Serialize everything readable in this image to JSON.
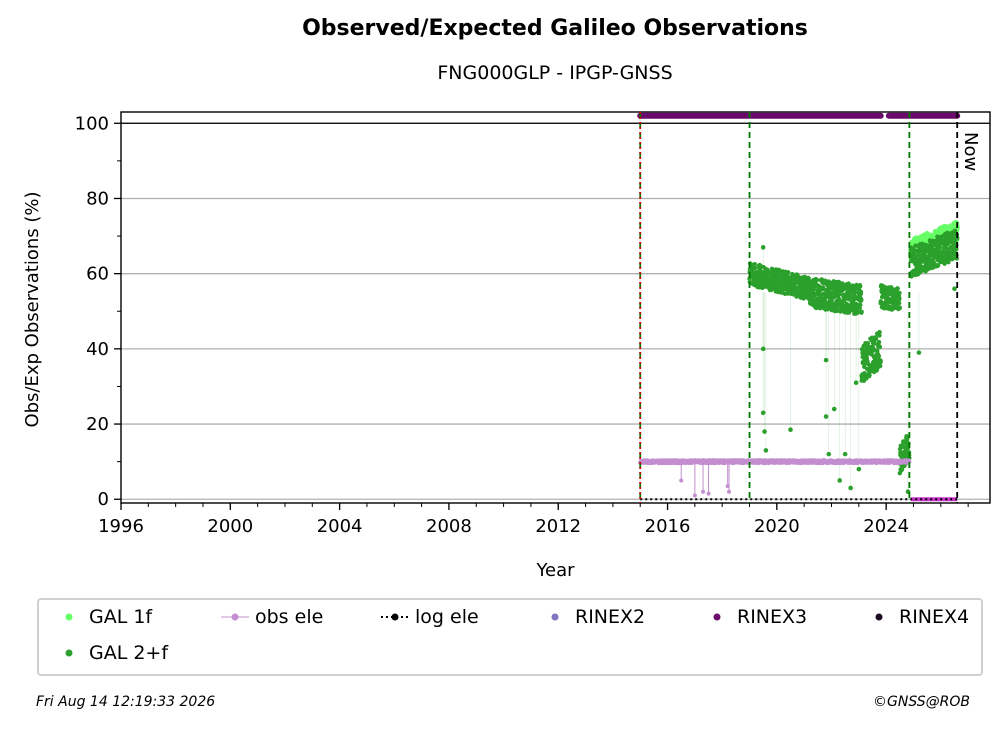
{
  "title": "Observed/Expected Galileo Observations",
  "subtitle": "FNG000GLP - IPGP-GNSS",
  "footer": {
    "timestamp": "Fri Aug 14 12:19:33 2026",
    "credit": "©GNSS@ROB"
  },
  "now_label": "Now",
  "colors": {
    "gal1f": "#66ff66",
    "gal2f": "#2ca02c",
    "obs_ele": "#c38fd0",
    "log_ele": "#000000",
    "rinex2": "#8075c0",
    "rinex3": "#6a0a6a",
    "rinex4": "#1a0a22",
    "event_green": "#007700",
    "event_red": "#cc0000",
    "grid": "#b0b0b0"
  },
  "legend": [
    {
      "label": "GAL 1f",
      "kind": "dot",
      "color": "#66ff66"
    },
    {
      "label": "obs ele",
      "kind": "line-dot",
      "color": "#c38fd0"
    },
    {
      "label": "log ele",
      "kind": "dotted-dot",
      "color": "#000000"
    },
    {
      "label": "RINEX2",
      "kind": "dot",
      "color": "#8075c0"
    },
    {
      "label": "RINEX3",
      "kind": "dot",
      "color": "#6a0a6a"
    },
    {
      "label": "RINEX4",
      "kind": "dot",
      "color": "#1a0a22"
    },
    {
      "label": "GAL 2+f",
      "kind": "dot",
      "color": "#2ca02c"
    }
  ],
  "chart_data": {
    "type": "scatter",
    "xlabel": "Year",
    "ylabel": "Obs/Exp Observations (%)",
    "xlim": [
      1996,
      2027.8
    ],
    "ylim": [
      -1,
      103
    ],
    "x_ticks": [
      "1996",
      "2000",
      "2004",
      "2008",
      "2012",
      "2016",
      "2020",
      "2024"
    ],
    "y_ticks": [
      "0",
      "20",
      "40",
      "60",
      "80",
      "100"
    ],
    "grid": "horizontal",
    "legend_position": "bottom",
    "now_x": 2026.6,
    "event_lines": [
      {
        "x": 2015.0,
        "style": "dashed",
        "color": "green"
      },
      {
        "x": 2015.0,
        "style": "dotted",
        "color": "red"
      },
      {
        "x": 2019.0,
        "style": "dashed",
        "color": "green"
      },
      {
        "x": 2024.85,
        "style": "dashed",
        "color": "green"
      }
    ],
    "series": [
      {
        "name": "GAL 1f",
        "segments": [
          {
            "x_range": [
              2024.9,
              2026.6
            ],
            "y_start": 66,
            "y_end": 71,
            "spread": 3
          }
        ]
      },
      {
        "name": "GAL 2+f",
        "segments": [
          {
            "x_range": [
              2019.0,
              2021.2
            ],
            "y_start": 60,
            "y_end": 56,
            "spread": 3
          },
          {
            "x_range": [
              2021.2,
              2023.1
            ],
            "y_start": 55,
            "y_end": 53,
            "spread": 4
          },
          {
            "x_range": [
              2023.1,
              2023.8
            ],
            "y_start": 36,
            "y_end": 40,
            "spread": 5
          },
          {
            "x_range": [
              2023.8,
              2024.5
            ],
            "y_start": 54,
            "y_end": 53,
            "spread": 3
          },
          {
            "x_range": [
              2024.5,
              2024.85
            ],
            "y_start": 10,
            "y_end": 14,
            "spread": 4
          },
          {
            "x_range": [
              2024.9,
              2026.6
            ],
            "y_start": 63,
            "y_end": 68,
            "spread": 4
          }
        ],
        "outliers": [
          [
            2019.5,
            67
          ],
          [
            2019.5,
            40
          ],
          [
            2019.5,
            23
          ],
          [
            2019.6,
            13
          ],
          [
            2019.55,
            18
          ],
          [
            2020.5,
            18.5
          ],
          [
            2021.8,
            37
          ],
          [
            2021.8,
            22
          ],
          [
            2021.9,
            12
          ],
          [
            2022.1,
            24
          ],
          [
            2022.3,
            5
          ],
          [
            2022.5,
            12
          ],
          [
            2022.7,
            3
          ],
          [
            2022.9,
            31
          ],
          [
            2023.0,
            8
          ],
          [
            2024.8,
            2
          ],
          [
            2025.2,
            39
          ],
          [
            2026.5,
            56
          ]
        ]
      },
      {
        "name": "obs ele",
        "segments": [
          {
            "x_range": [
              2015.0,
              2024.85
            ],
            "y_start": 10,
            "y_end": 10,
            "spread": 0.4
          }
        ],
        "dips": [
          [
            2016.5,
            5
          ],
          [
            2017.0,
            1
          ],
          [
            2017.3,
            2
          ],
          [
            2017.5,
            1.5
          ],
          [
            2018.2,
            3.5
          ],
          [
            2018.25,
            2
          ]
        ]
      },
      {
        "name": "log ele",
        "segments": [
          {
            "x_range": [
              2015.0,
              2026.6
            ],
            "y_start": 0,
            "y_end": 0,
            "spread": 0
          }
        ]
      },
      {
        "name": "RINEX3",
        "segments": [
          {
            "x_range": [
              2015.0,
              2023.8
            ],
            "y_start": 102,
            "y_end": 102,
            "spread": 0
          },
          {
            "x_range": [
              2024.1,
              2026.6
            ],
            "y_start": 102,
            "y_end": 102,
            "spread": 0
          }
        ]
      },
      {
        "name": "RINEX2",
        "segments": []
      },
      {
        "name": "RINEX4",
        "segments": []
      }
    ],
    "extra_segments": [
      {
        "name": "magenta-baseline",
        "x_range": [
          2024.9,
          2026.6
        ],
        "y": 0,
        "color": "#cc33cc"
      }
    ]
  }
}
